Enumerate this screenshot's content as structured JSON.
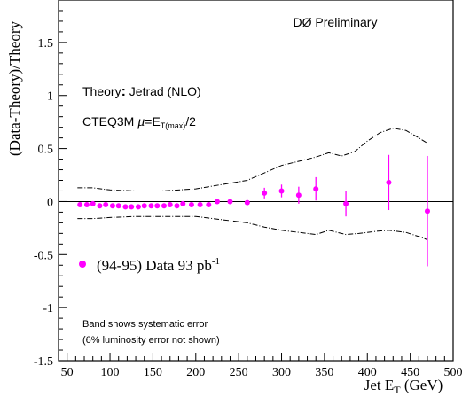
{
  "chart_data": {
    "type": "scatter",
    "ylabel": "(Data-Theory)/Theory",
    "xlabel_main": "Jet E",
    "xlabel_sub": "T",
    "xlabel_unit": " (GeV)",
    "xlim": [
      40,
      500
    ],
    "ylim": [
      -1.5,
      1.9
    ],
    "x_ticks": [
      "50",
      "100",
      "150",
      "200",
      "250",
      "300",
      "350",
      "400",
      "450",
      "500"
    ],
    "x_tick_values": [
      50,
      100,
      150,
      200,
      250,
      300,
      350,
      400,
      450,
      500
    ],
    "y_ticks": [
      "-1.5",
      "-1",
      "-0.5",
      "0",
      "0.5",
      "1",
      "1.5"
    ],
    "y_tick_values": [
      -1.5,
      -1,
      -0.5,
      0,
      0.5,
      1,
      1.5
    ],
    "marker_color": "#ff00ff",
    "points": [
      {
        "x": 65,
        "y": -0.03,
        "err": 0
      },
      {
        "x": 73,
        "y": -0.03,
        "err": 0
      },
      {
        "x": 80,
        "y": -0.02,
        "err": 0
      },
      {
        "x": 88,
        "y": -0.04,
        "err": 0
      },
      {
        "x": 95,
        "y": -0.03,
        "err": 0
      },
      {
        "x": 103,
        "y": -0.04,
        "err": 0
      },
      {
        "x": 110,
        "y": -0.04,
        "err": 0
      },
      {
        "x": 118,
        "y": -0.05,
        "err": 0
      },
      {
        "x": 125,
        "y": -0.05,
        "err": 0
      },
      {
        "x": 133,
        "y": -0.05,
        "err": 0
      },
      {
        "x": 140,
        "y": -0.04,
        "err": 0
      },
      {
        "x": 148,
        "y": -0.04,
        "err": 0
      },
      {
        "x": 155,
        "y": -0.04,
        "err": 0
      },
      {
        "x": 163,
        "y": -0.04,
        "err": 0
      },
      {
        "x": 170,
        "y": -0.03,
        "err": 0
      },
      {
        "x": 178,
        "y": -0.04,
        "err": 0
      },
      {
        "x": 185,
        "y": -0.02,
        "err": 0
      },
      {
        "x": 195,
        "y": -0.03,
        "err": 0
      },
      {
        "x": 205,
        "y": -0.03,
        "err": 0
      },
      {
        "x": 215,
        "y": -0.03,
        "err": 0
      },
      {
        "x": 225,
        "y": 0.0,
        "err": 0
      },
      {
        "x": 240,
        "y": 0.0,
        "err": 0
      },
      {
        "x": 260,
        "y": -0.01,
        "err": 0.02
      },
      {
        "x": 280,
        "y": 0.08,
        "err": 0.05
      },
      {
        "x": 300,
        "y": 0.1,
        "err": 0.06
      },
      {
        "x": 320,
        "y": 0.06,
        "err": 0.08
      },
      {
        "x": 340,
        "y": 0.12,
        "err": 0.11
      },
      {
        "x": 375,
        "y": -0.02,
        "err": 0.12
      },
      {
        "x": 425,
        "y": 0.18,
        "err": 0.26
      },
      {
        "x": 470,
        "y": -0.09,
        "err": 0.52
      }
    ],
    "band_upper": [
      [
        62,
        0.13
      ],
      [
        80,
        0.13
      ],
      [
        100,
        0.11
      ],
      [
        130,
        0.1
      ],
      [
        160,
        0.1
      ],
      [
        200,
        0.12
      ],
      [
        230,
        0.16
      ],
      [
        260,
        0.2
      ],
      [
        280,
        0.27
      ],
      [
        300,
        0.34
      ],
      [
        320,
        0.38
      ],
      [
        340,
        0.42
      ],
      [
        355,
        0.46
      ],
      [
        370,
        0.43
      ],
      [
        385,
        0.47
      ],
      [
        400,
        0.57
      ],
      [
        415,
        0.65
      ],
      [
        430,
        0.69
      ],
      [
        445,
        0.67
      ],
      [
        460,
        0.6
      ],
      [
        470,
        0.55
      ]
    ],
    "band_lower": [
      [
        62,
        -0.16
      ],
      [
        80,
        -0.16
      ],
      [
        100,
        -0.15
      ],
      [
        130,
        -0.14
      ],
      [
        160,
        -0.14
      ],
      [
        200,
        -0.14
      ],
      [
        230,
        -0.17
      ],
      [
        260,
        -0.2
      ],
      [
        280,
        -0.24
      ],
      [
        300,
        -0.27
      ],
      [
        320,
        -0.29
      ],
      [
        340,
        -0.31
      ],
      [
        355,
        -0.27
      ],
      [
        375,
        -0.31
      ],
      [
        390,
        -0.3
      ],
      [
        410,
        -0.28
      ],
      [
        425,
        -0.27
      ],
      [
        445,
        -0.29
      ],
      [
        460,
        -0.33
      ],
      [
        470,
        -0.36
      ]
    ],
    "annotations": {
      "preliminary": "DØ Preliminary",
      "theory_prefix": "Theory",
      "theory_colon": ":",
      "theory_rest": " Jetrad (NLO)",
      "pdf_prefix": "CTEQ3M ",
      "mu": "μ",
      "eq": "=E",
      "sub": "T(max)",
      "div": "/2",
      "band_note": "Band shows systematic error",
      "lumi_note": "(6% luminosity error not shown)"
    },
    "legend": {
      "label_prefix": "(94-95) Data 93 pb",
      "label_exp": "-1"
    }
  }
}
